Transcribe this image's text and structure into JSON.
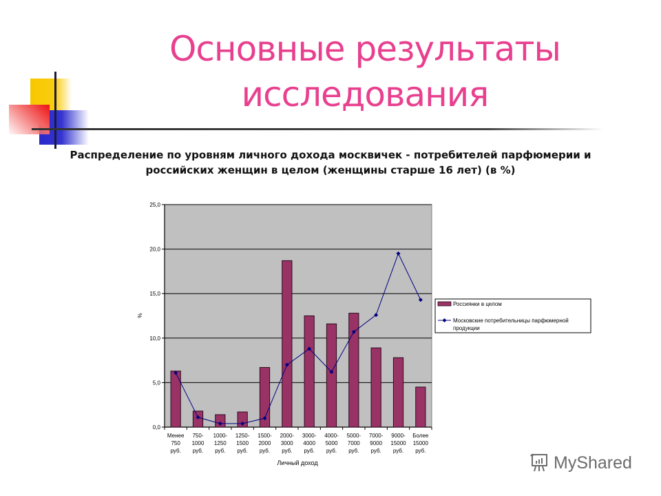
{
  "slide": {
    "title_line1": "Основные результаты",
    "title_line2": "исследования",
    "subtitle_line1": "Распределение по уровням личного дохода москвичек - потребителей парфюмерии и",
    "subtitle_line2": "российских женщин в целом (женщины старше 16 лет) (в %)",
    "watermark": "MyShared"
  },
  "colors": {
    "title": "#e8408f",
    "bar_fill": "#993366",
    "line": "#000080",
    "plot_bg": "#c0c0c0"
  },
  "chart_data": {
    "type": "bar",
    "title": "Распределение по уровням личного дохода москвичек - потребителей парфюмерии и российских женщин в целом (женщины старше 16 лет) (в %)",
    "xlabel": "Личный доход",
    "ylabel": "%",
    "ylim": [
      0,
      25
    ],
    "yticks": [
      "0,0",
      "5,0",
      "10,0",
      "15,0",
      "20,0",
      "25,0"
    ],
    "grid": true,
    "legend_position": "right",
    "categories": [
      [
        "Менее",
        "750",
        "руб."
      ],
      [
        "750-",
        "1000",
        "руб."
      ],
      [
        "1000-",
        "1250",
        "руб."
      ],
      [
        "1250-",
        "1500",
        "руб."
      ],
      [
        "1500-",
        "2000",
        "руб."
      ],
      [
        "2000-",
        "3000",
        "руб."
      ],
      [
        "3000-",
        "4000",
        "руб."
      ],
      [
        "4000-",
        "5000",
        "руб."
      ],
      [
        "5000-",
        "7000",
        "руб."
      ],
      [
        "7000-",
        "9000",
        "руб."
      ],
      [
        "9000-",
        "15000",
        "руб."
      ],
      [
        "Более",
        "15000",
        "руб."
      ]
    ],
    "series": [
      {
        "name": "Россиянки в целом",
        "type": "bar",
        "values": [
          6.3,
          1.8,
          1.4,
          1.7,
          6.7,
          18.7,
          12.5,
          11.6,
          12.8,
          8.9,
          7.8,
          4.5
        ]
      },
      {
        "name": "Московские потребительницы парфюмерной продукции",
        "type": "line",
        "values": [
          6.1,
          1.1,
          0.4,
          0.4,
          1.0,
          7.0,
          8.8,
          6.2,
          10.7,
          12.6,
          19.5,
          14.3
        ]
      }
    ],
    "legend": {
      "items": [
        {
          "label": "Россиянки в целом"
        },
        {
          "label_line1": "Московские потребительницы парфюмерной",
          "label_line2": "продукции"
        }
      ]
    }
  }
}
